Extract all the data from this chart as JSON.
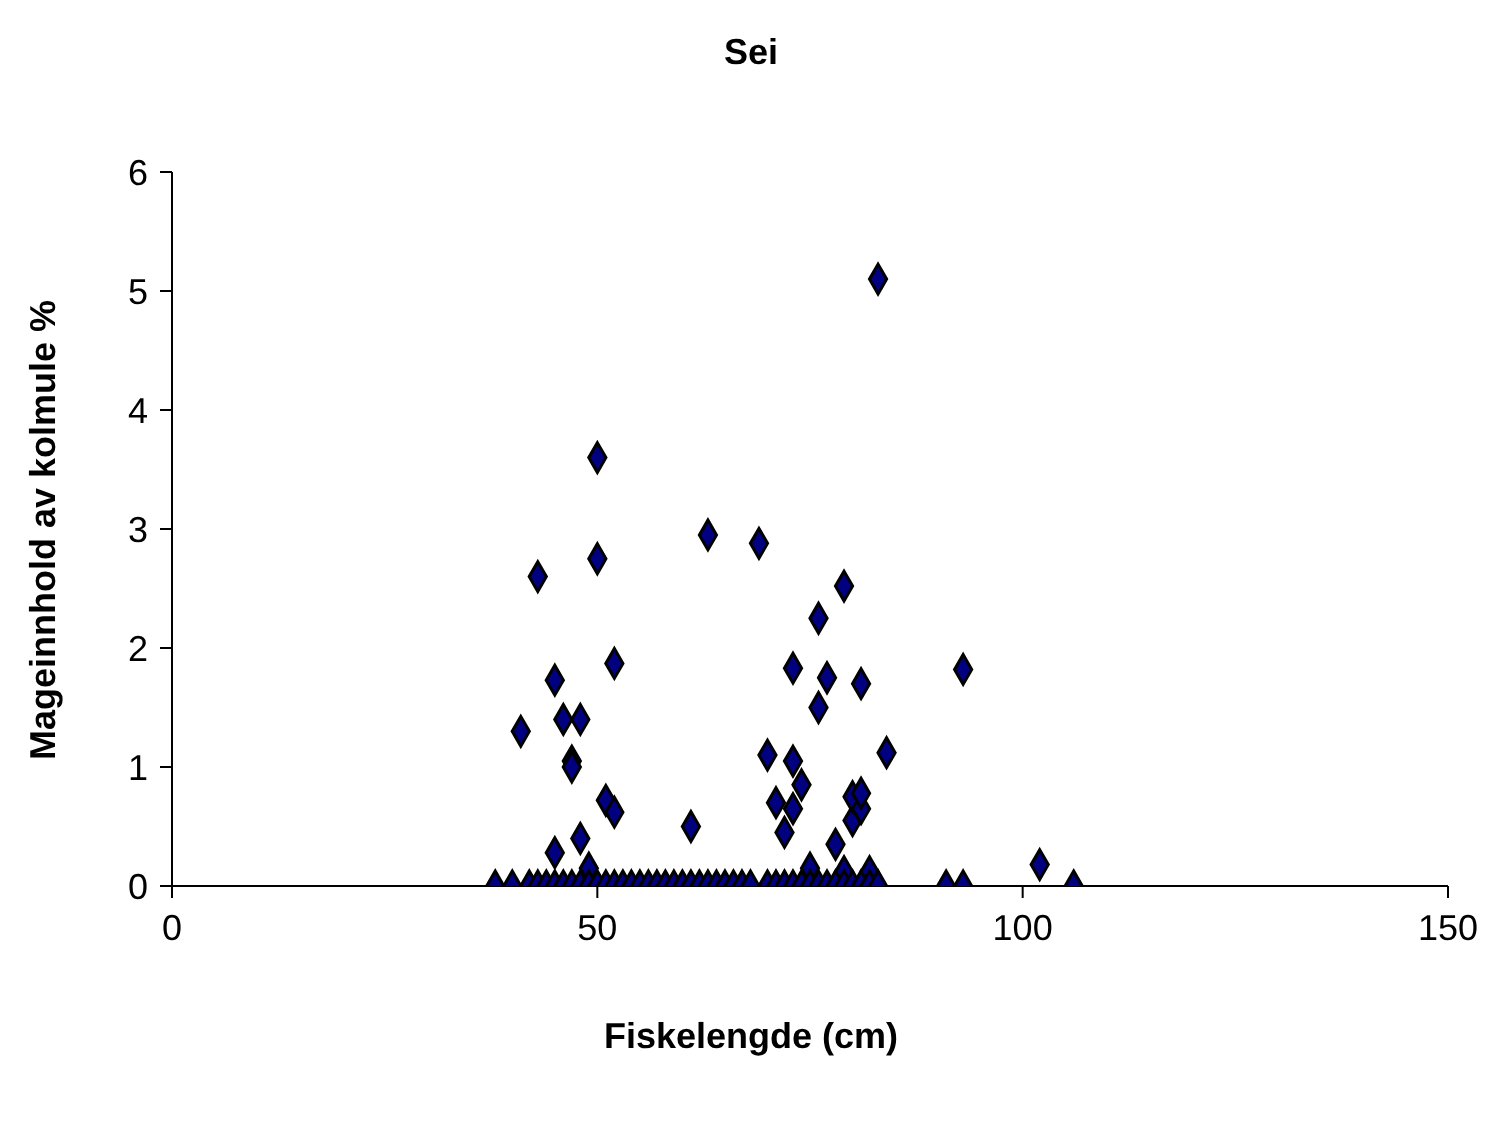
{
  "chart_data": {
    "type": "scatter",
    "title": "Sei",
    "xlabel": "Fiskelengde (cm)",
    "ylabel": "Mageinnhold av kolmule %",
    "xlim": [
      0,
      150
    ],
    "xticks": [
      0,
      50,
      100,
      150
    ],
    "ylim": [
      0,
      6
    ],
    "yticks": [
      0,
      1,
      2,
      3,
      4,
      5,
      6
    ],
    "grid": false,
    "legend": false,
    "marker": "diamond",
    "series": [
      {
        "color": "#000080",
        "x": [
          41,
          43,
          45,
          45,
          46,
          47,
          47,
          48,
          48,
          49,
          50,
          50,
          51,
          52,
          52,
          61,
          63,
          69,
          70,
          71,
          72,
          73,
          73,
          73,
          74,
          75,
          76,
          76,
          77,
          78,
          79,
          79,
          80,
          80,
          81,
          81,
          81,
          82,
          83,
          84,
          93,
          102,
          38,
          40,
          42,
          43,
          44,
          45,
          46,
          47,
          48,
          49,
          50,
          51,
          52,
          53,
          54,
          55,
          56,
          57,
          58,
          59,
          60,
          61,
          62,
          63,
          64,
          65,
          66,
          67,
          68,
          70,
          71,
          72,
          73,
          74,
          75,
          76,
          77,
          78,
          79,
          80,
          81,
          82,
          83,
          91,
          93,
          106
        ],
        "values": [
          1.3,
          2.6,
          1.73,
          0.28,
          1.4,
          1.05,
          1.0,
          1.4,
          0.4,
          0.15,
          3.6,
          2.75,
          0.72,
          1.87,
          0.62,
          0.5,
          2.95,
          2.88,
          1.1,
          0.7,
          0.45,
          0.65,
          1.05,
          1.83,
          0.85,
          0.15,
          2.25,
          1.5,
          1.75,
          0.35,
          2.52,
          0.12,
          0.55,
          0.75,
          0.65,
          0.78,
          1.7,
          0.12,
          5.1,
          1.12,
          1.82,
          0.18,
          0,
          0,
          0,
          0,
          0,
          0,
          0,
          0,
          0,
          0,
          0,
          0,
          0,
          0,
          0,
          0,
          0,
          0,
          0,
          0,
          0,
          0,
          0,
          0,
          0,
          0,
          0,
          0,
          0,
          0,
          0,
          0,
          0,
          0,
          0,
          0,
          0,
          0,
          0,
          0,
          0,
          0,
          0,
          0,
          0,
          0
        ]
      }
    ]
  }
}
